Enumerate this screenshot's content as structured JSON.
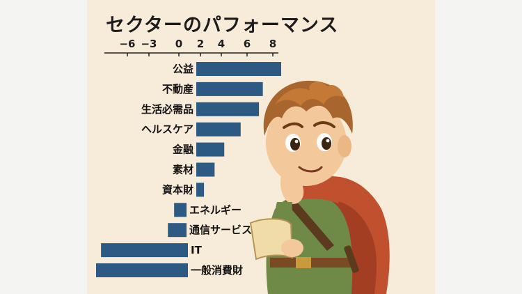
{
  "chart_data": {
    "type": "bar",
    "orientation": "horizontal",
    "title": "セクターのパフォーマンス",
    "xlabel": "",
    "ylabel": "",
    "xlim": [
      -7.2,
      9.2
    ],
    "xticks": [
      "−6",
      "−3",
      "0",
      "2",
      "4",
      "6",
      "8"
    ],
    "xtick_values": [
      -6,
      -3,
      0,
      2,
      4,
      6,
      8
    ],
    "categories": [
      "公益",
      "不動産",
      "生活必需品",
      "ヘルスケア",
      "金融",
      "素材",
      "資本財",
      "エネルギー",
      "通信サービス",
      "IT",
      "一般消費財"
    ],
    "values": [
      8.8,
      6.9,
      6.5,
      4.6,
      2.9,
      1.9,
      0.8,
      -1.0,
      -1.5,
      -7.0,
      -7.4
    ],
    "bar_color": "#2d5a82",
    "legend": "none",
    "grid": false
  },
  "illustration": {
    "description_icon": "thinking-boy-adventurer-illustration"
  }
}
